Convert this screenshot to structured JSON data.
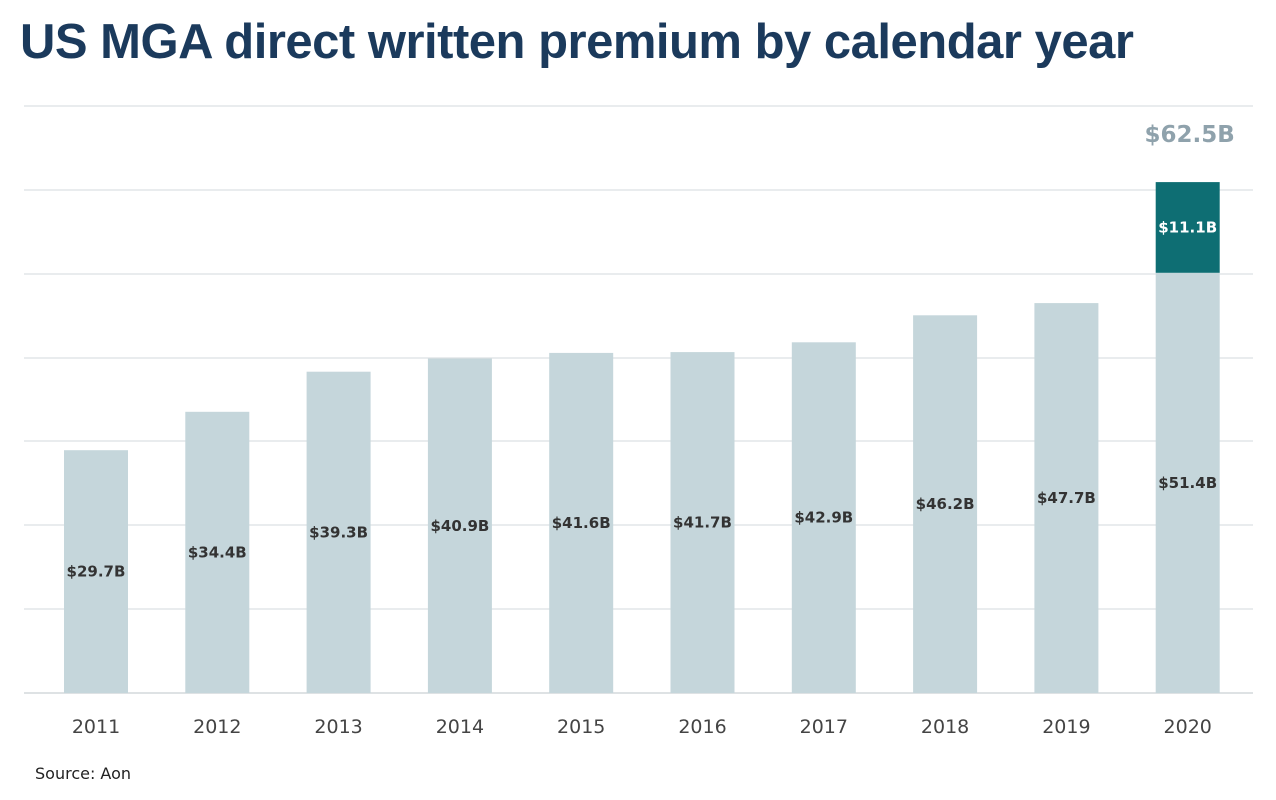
{
  "chart_data": {
    "type": "bar",
    "stacked": true,
    "title": "US MGA direct written premium by calendar year",
    "xlabel": "",
    "ylabel": "",
    "ylim": [
      0,
      72
    ],
    "grid": true,
    "categories": [
      "2011",
      "2012",
      "2013",
      "2014",
      "2015",
      "2016",
      "2017",
      "2018",
      "2019",
      "2020"
    ],
    "series": [
      {
        "values": [
          29.7,
          34.4,
          39.3,
          40.9,
          41.6,
          41.7,
          42.9,
          46.2,
          47.7,
          51.4
        ],
        "labels": [
          "$29.7B",
          "$34.4B",
          "$39.3B",
          "$40.9B",
          "$41.6B",
          "$41.7B",
          "$42.9B",
          "$46.2B",
          "$47.7B",
          "$51.4B"
        ],
        "color": "#c5d6db"
      },
      {
        "values": [
          null,
          null,
          null,
          null,
          null,
          null,
          null,
          null,
          null,
          11.1
        ],
        "labels": [
          "",
          "",
          "",
          "",
          "",
          "",
          "",
          "",
          "",
          "$11.1B"
        ],
        "color": "#0e6e73"
      }
    ],
    "totals": [
      {
        "category": "2020",
        "value": 62.5,
        "label": "$62.5B"
      }
    ],
    "source": "Source: Aon"
  },
  "colors": {
    "title": "#1b3a5c",
    "grid": "#d3d9dc",
    "base_bar": "#c5d6db",
    "highlight_bar": "#0e6e73",
    "base_label": "#333333",
    "highlight_label": "#ffffff",
    "total_label": "#8fa2ac"
  }
}
